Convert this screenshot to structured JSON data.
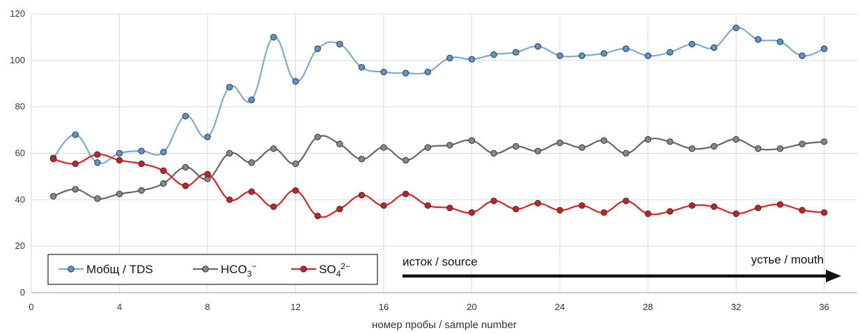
{
  "chart_data": {
    "type": "line",
    "xlabel": "номер пробы / sample number",
    "ylabel": "",
    "xlim": [
      0,
      37.5
    ],
    "ylim": [
      0,
      120
    ],
    "xticks": [
      0,
      4,
      8,
      12,
      16,
      20,
      24,
      28,
      32,
      36
    ],
    "yticks": [
      0,
      20,
      40,
      60,
      80,
      100,
      120
    ],
    "grid": true,
    "legend_position": "bottom-left",
    "x": [
      1,
      2,
      3,
      4,
      5,
      6,
      7,
      8,
      9,
      10,
      11,
      12,
      13,
      14,
      15,
      16,
      17,
      18,
      19,
      20,
      21,
      22,
      23,
      24,
      25,
      26,
      27,
      28,
      29,
      30,
      31,
      32,
      33,
      34,
      35,
      36
    ],
    "series": [
      {
        "name": "Мобщ / TDS",
        "color": "#7aaad6",
        "marker_color": "#5b95cf",
        "values": [
          58,
          68,
          56,
          60,
          61,
          60.5,
          76,
          67,
          88.5,
          83,
          110,
          91,
          105,
          107,
          97,
          95,
          94.5,
          95,
          101,
          100.5,
          102.5,
          103.5,
          106,
          102,
          102,
          103,
          105,
          102,
          103.5,
          107,
          105.5,
          114,
          109,
          108,
          102,
          105
        ]
      },
      {
        "name": "HCO3−",
        "name_parts": [
          "HCO",
          "3",
          "−"
        ],
        "color": "#666666",
        "marker_color": "#888888",
        "values": [
          41.5,
          44.5,
          40.5,
          42.5,
          44,
          47,
          54,
          49,
          60,
          56,
          62,
          55.5,
          67,
          64,
          57.5,
          62.5,
          57,
          62.5,
          63.5,
          65.5,
          60,
          63,
          61,
          64.5,
          62.5,
          65.5,
          60,
          66,
          65,
          62,
          63,
          66,
          62,
          62,
          64,
          65
        ]
      },
      {
        "name": "SO42−",
        "name_parts": [
          "SO",
          "4",
          "2−"
        ],
        "color": "#e02020",
        "marker_color": "#cc1f1f",
        "values": [
          57.5,
          55.5,
          59.5,
          57,
          55.5,
          52.5,
          46,
          51,
          40,
          43.5,
          37,
          44,
          33,
          36,
          42,
          37.5,
          42.5,
          37.5,
          36.5,
          34.5,
          39.5,
          36,
          38.5,
          35.5,
          37.5,
          34.5,
          39.5,
          34,
          35,
          37.5,
          37,
          34,
          36.5,
          38,
          35.5,
          34.5
        ]
      }
    ],
    "annotations": {
      "source": "исток / source",
      "mouth": "устье  / mouth"
    }
  }
}
